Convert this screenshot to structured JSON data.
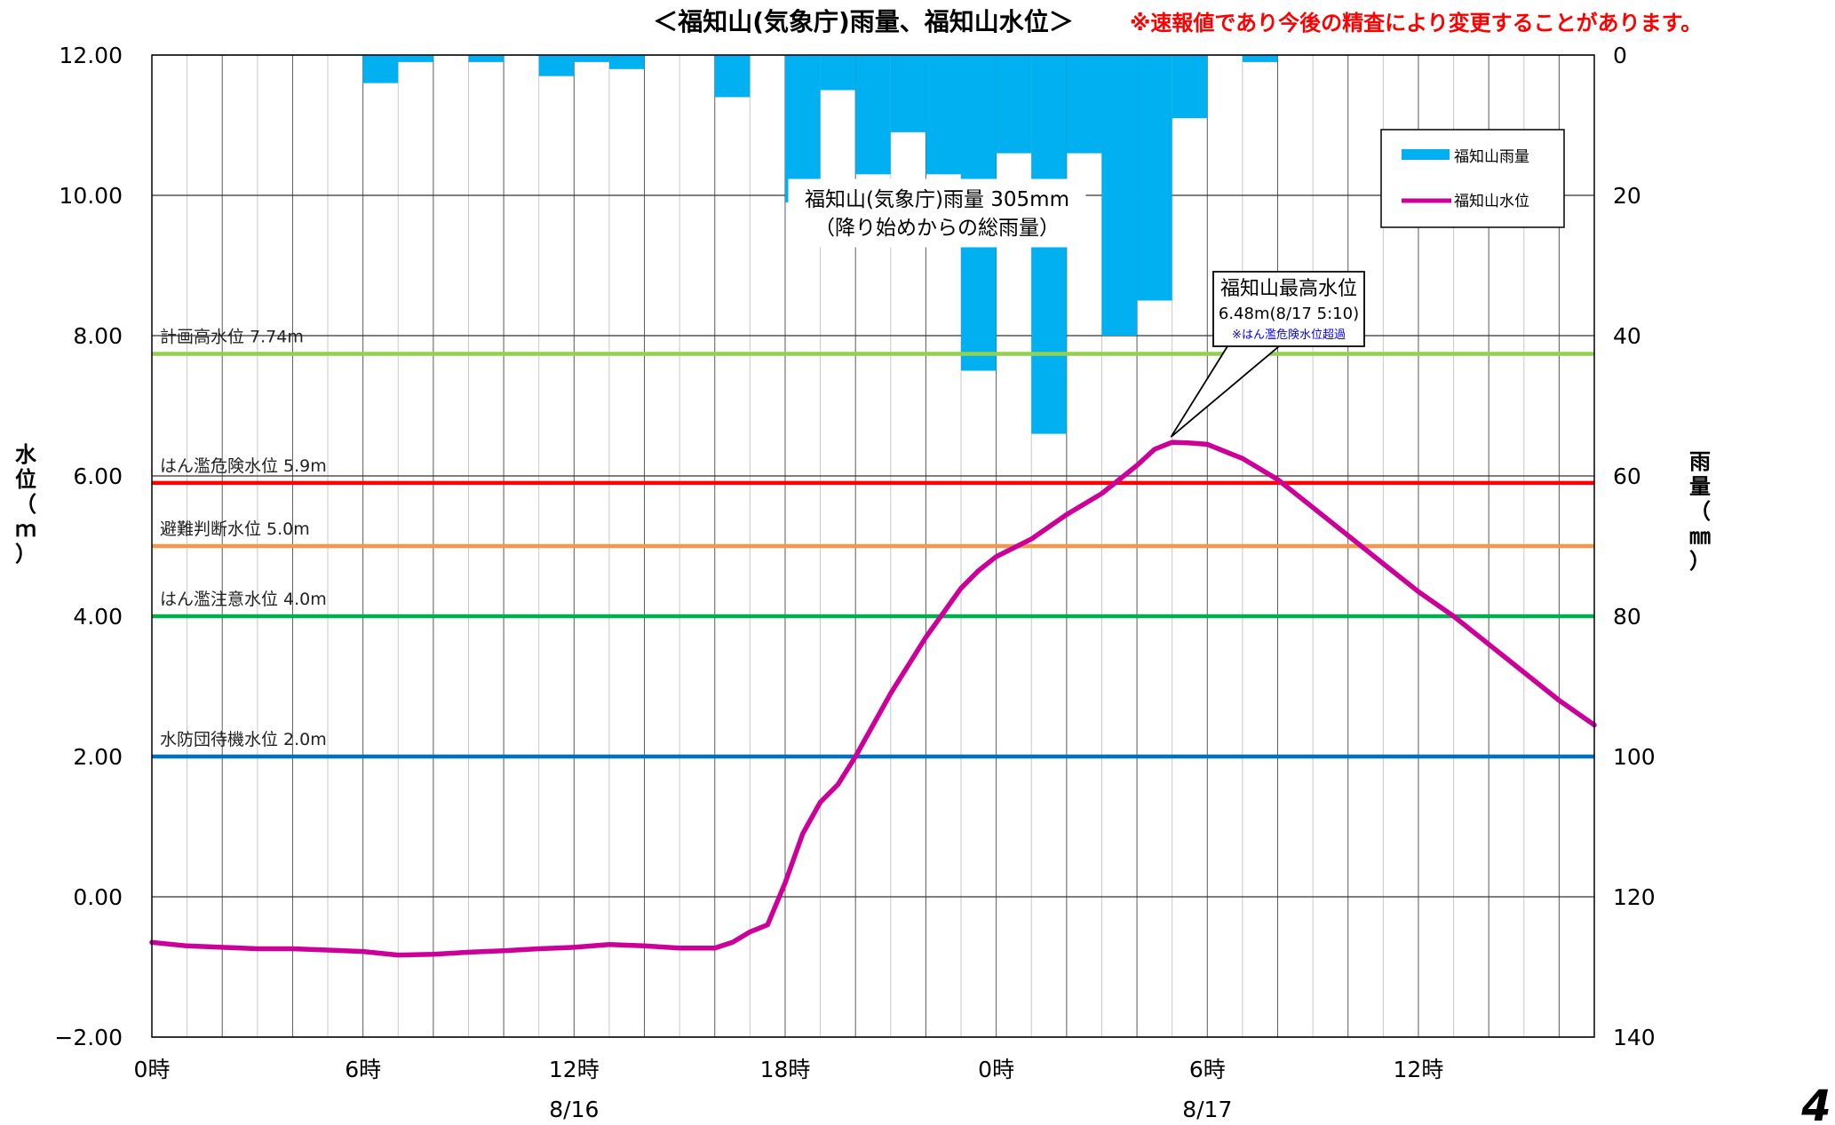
{
  "page": {
    "title": "＜福知山(気象庁)雨量、福知山水位＞",
    "notice": "※速報値であり今後の精査により変更することがあります。",
    "page_number": "4"
  },
  "colors": {
    "rain_bar": "#00b0f0",
    "water_line": "#cc0099",
    "planned_high": "#92d050",
    "danger": "#ff0000",
    "evacuation": "#f79646",
    "caution": "#00b050",
    "standby": "#0070c0",
    "notice_text": "#ff0000",
    "callout_note": "#0000ff"
  },
  "chart_data": {
    "type": "bar+line",
    "title": "＜福知山(気象庁)雨量、福知山水位＞",
    "left_axis": {
      "label": "水位（ｍ）",
      "ylim": [
        -2,
        12
      ],
      "ticks": [
        "12.00",
        "10.00",
        "8.00",
        "6.00",
        "4.00",
        "2.00",
        "0.00",
        "−2.00"
      ]
    },
    "right_axis": {
      "label": "雨量（㎜）",
      "ylim": [
        0,
        140
      ],
      "inverted": true,
      "ticks": [
        "0",
        "20",
        "40",
        "60",
        "80",
        "100",
        "120",
        "140"
      ]
    },
    "x_axis": {
      "range_hours": [
        0,
        41
      ],
      "tick_labels": [
        {
          "hour": 0,
          "label": "0時"
        },
        {
          "hour": 6,
          "label": "6時"
        },
        {
          "hour": 12,
          "label": "12時"
        },
        {
          "hour": 18,
          "label": "18時"
        },
        {
          "hour": 24,
          "label": "0時"
        },
        {
          "hour": 30,
          "label": "6時"
        },
        {
          "hour": 36,
          "label": "12時"
        }
      ],
      "date_labels": [
        {
          "hour": 12,
          "label": "8/16"
        },
        {
          "hour": 30,
          "label": "8/17"
        }
      ]
    },
    "legend": {
      "placement": "top-right",
      "rain_label": "福知山雨量",
      "level_label": "福知山水位"
    },
    "thresholds": [
      {
        "name": "計画高水位",
        "label": "計画高水位 7.74m",
        "value": 7.74,
        "color": "#92d050"
      },
      {
        "name": "はん濫危険水位",
        "label": "はん濫危険水位 5.9m",
        "value": 5.9,
        "color": "#ff0000"
      },
      {
        "name": "避難判断水位",
        "label": "避難判断水位 5.0m",
        "value": 5.0,
        "color": "#f79646"
      },
      {
        "name": "はん濫注意水位",
        "label": "はん濫注意水位 4.0m",
        "value": 4.0,
        "color": "#00b050"
      },
      {
        "name": "水防団待機水位",
        "label": "水防団待機水位 2.0m",
        "value": 2.0,
        "color": "#0070c0"
      }
    ],
    "rainfall_series": {
      "name": "福知山雨量",
      "hours": [
        6,
        7,
        9,
        11,
        12,
        13,
        16,
        18,
        19,
        20,
        21,
        22,
        23,
        24,
        25,
        26,
        27,
        28,
        29,
        31
      ],
      "values": [
        4,
        1,
        1,
        3,
        1,
        2,
        6,
        21,
        5,
        17,
        11,
        17,
        45,
        14,
        54,
        14,
        40,
        35,
        9,
        1
      ]
    },
    "water_level_series": {
      "name": "福知山水位",
      "x_hours": [
        0,
        1,
        2,
        3,
        4,
        5,
        6,
        7,
        8,
        9,
        10,
        11,
        12,
        13,
        14,
        15,
        16,
        16.5,
        17,
        17.5,
        18,
        18.5,
        19,
        19.5,
        20,
        20.5,
        21,
        21.5,
        22,
        22.5,
        23,
        23.5,
        24,
        25,
        26,
        27,
        28,
        28.5,
        29,
        29.5,
        30,
        30.5,
        31,
        32,
        33,
        34,
        35,
        36,
        37,
        38,
        39,
        40,
        41
      ],
      "values": [
        -0.65,
        -0.7,
        -0.72,
        -0.74,
        -0.74,
        -0.76,
        -0.78,
        -0.83,
        -0.82,
        -0.79,
        -0.77,
        -0.74,
        -0.72,
        -0.68,
        -0.7,
        -0.73,
        -0.73,
        -0.65,
        -0.5,
        -0.4,
        0.2,
        0.9,
        1.35,
        1.6,
        2.0,
        2.45,
        2.9,
        3.3,
        3.7,
        4.05,
        4.4,
        4.65,
        4.85,
        5.1,
        5.45,
        5.75,
        6.15,
        6.38,
        6.48,
        6.47,
        6.45,
        6.35,
        6.25,
        5.95,
        5.55,
        5.15,
        4.75,
        4.35,
        4.0,
        3.6,
        3.2,
        2.8,
        2.45
      ]
    },
    "annotations": [
      {
        "text": "福知山(気象庁)雨量 305mm",
        "note": "（降り始めからの総雨量）"
      },
      {
        "title": "福知山最高水位",
        "value": "6.48m(8/17 5:10)",
        "note": "※はん濫危険水位超過",
        "peak_hour": 29.17,
        "peak_value": 6.48
      }
    ]
  }
}
